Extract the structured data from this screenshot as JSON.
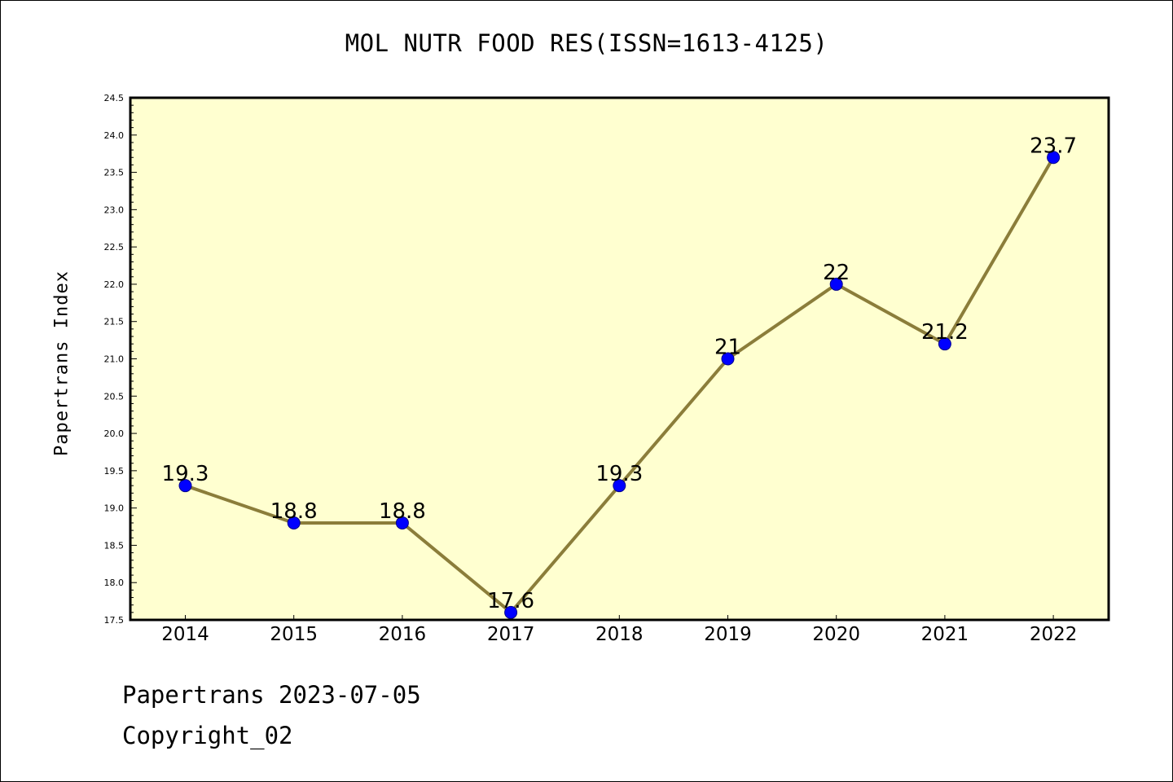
{
  "chart_data": {
    "type": "line",
    "title": "MOL NUTR FOOD RES(ISSN=1613-4125)",
    "xlabel": "",
    "ylabel": "Papertrans Index",
    "categories": [
      "2014",
      "2015",
      "2016",
      "2017",
      "2018",
      "2019",
      "2020",
      "2021",
      "2022"
    ],
    "series": [
      {
        "values": [
          19.3,
          18.8,
          18.8,
          17.6,
          19.3,
          21.0,
          22.0,
          21.2,
          23.7
        ],
        "labels": [
          "19.3",
          "18.8",
          "18.8",
          "17.6",
          "19.3",
          "21",
          "22",
          "21.2",
          "23.7"
        ]
      }
    ],
    "ylim": [
      17.5,
      24.5
    ],
    "yticks": [
      "17.5",
      "18.0",
      "18.5",
      "19.0",
      "19.5",
      "20.0",
      "20.5",
      "21.0",
      "21.5",
      "22.0",
      "22.5",
      "23.0",
      "23.5",
      "24.0",
      "24.5"
    ],
    "grid": false,
    "legend": "none",
    "colors": {
      "plot_background": "#ffffd0",
      "line": "#8b7d3a",
      "marker_fill": "#0000ff",
      "marker_edge": "#00008b",
      "axis": "#000000"
    }
  },
  "footer": {
    "date_line": "Papertrans 2023-07-05",
    "copyright_line": "Copyright_02"
  }
}
